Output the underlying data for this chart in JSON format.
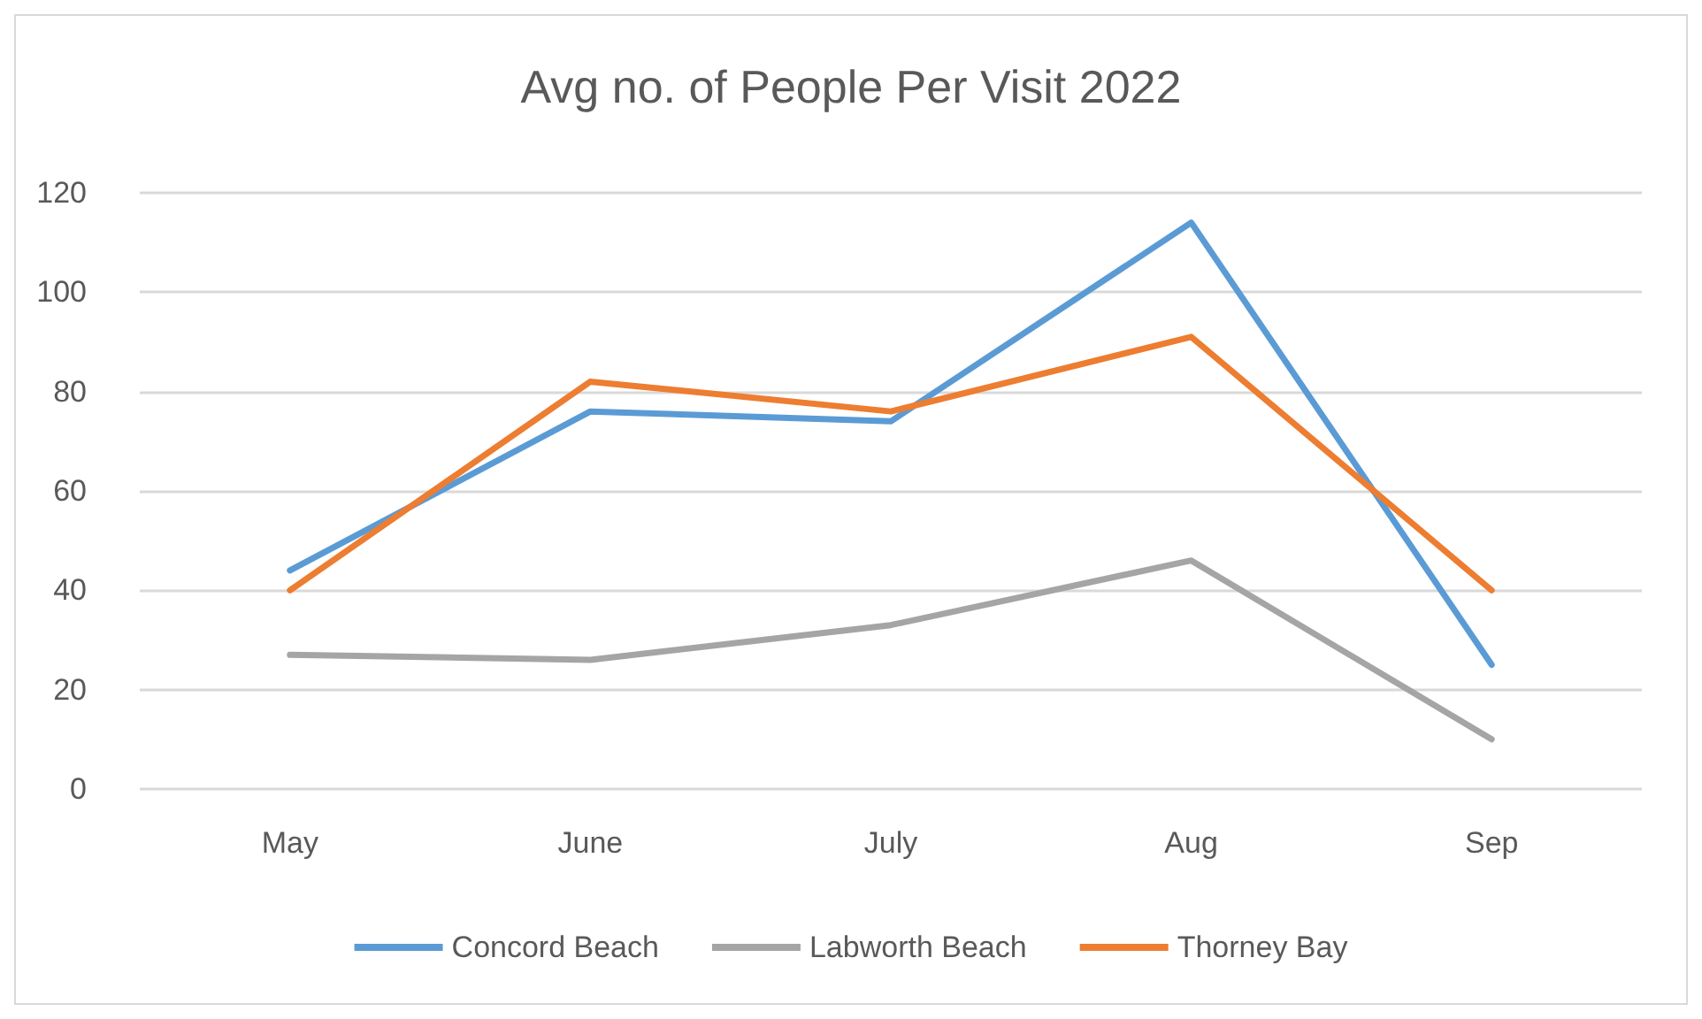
{
  "chart_data": {
    "type": "line",
    "title": "Avg no. of People Per Visit 2022",
    "categories": [
      "May",
      "June",
      "July",
      "Aug",
      "Sep"
    ],
    "series": [
      {
        "name": "Concord Beach",
        "color": "#5b9bd5",
        "values": [
          44,
          76,
          74,
          114,
          25
        ]
      },
      {
        "name": "Labworth Beach",
        "color": "#a5a5a5",
        "values": [
          27,
          26,
          33,
          46,
          10
        ]
      },
      {
        "name": "Thorney Bay",
        "color": "#ed7d31",
        "values": [
          40,
          82,
          76,
          91,
          40
        ]
      }
    ],
    "ylim": [
      0,
      120
    ],
    "yticks": [
      0,
      20,
      40,
      60,
      80,
      100,
      120
    ],
    "grid": "y",
    "legend": "bottom",
    "marker": "none",
    "line_style": "solid"
  }
}
